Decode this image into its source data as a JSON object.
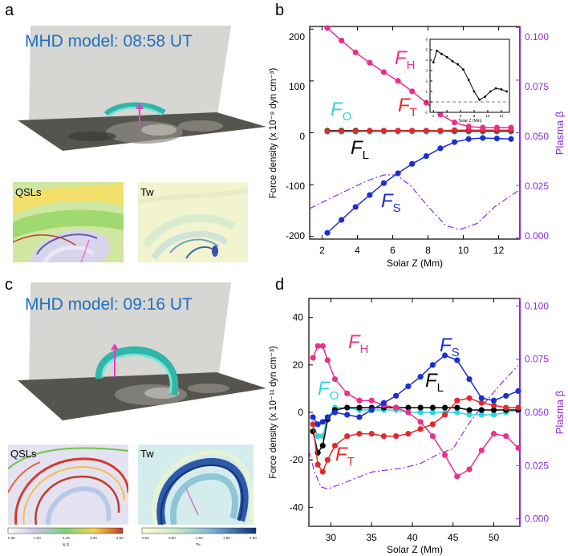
{
  "panels": {
    "a": {
      "letter": "a",
      "title": "MHD model: 08:58 UT",
      "map_left": "QSLs",
      "map_right": "Tw"
    },
    "b": {
      "letter": "b"
    },
    "c": {
      "letter": "c",
      "title": "MHD model: 09:16 UT",
      "map_left": "QSLs",
      "map_right": "Tw",
      "cbar_left": {
        "ticks": [
          "0.30",
          "1.20",
          "2.15",
          "3.00",
          "4.00"
        ],
        "label": "lg Q"
      },
      "cbar_right": {
        "ticks": [
          "0.00",
          "0.50",
          "1.00",
          "1.50",
          "2.00"
        ],
        "label": "Tw"
      }
    },
    "d": {
      "letter": "d"
    }
  },
  "colors": {
    "FH": "#e8308f",
    "FT": "#e02b2b",
    "FO": "#2fd6e0",
    "FL": "#000000",
    "FS": "#1b2fd2",
    "beta": "#8a2be2"
  },
  "chart_data": [
    {
      "type": "line",
      "xlabel": "Solar Z (Mm)",
      "ylabel": "Force density (x 10⁻⁸ dyn cm⁻³)",
      "y2label": "Plasma β",
      "xlim": [
        1.3,
        13.2
      ],
      "ylim": [
        -205,
        205
      ],
      "y2lim": [
        -0.0005,
        0.1005
      ],
      "xticks": [
        "2",
        "4",
        "6",
        "8",
        "10",
        "12"
      ],
      "yticks": [
        "200",
        "100",
        "0",
        "-100",
        "-200"
      ],
      "y2ticks": [
        "0.100",
        "0.075",
        "0.050",
        "0.025",
        "0.000"
      ],
      "series": [
        {
          "name": "FH",
          "x": [
            2.3,
            3.1,
            3.9,
            4.7,
            5.5,
            6.3,
            7.1,
            7.9,
            8.7,
            9.5,
            10.3,
            11.1,
            11.9,
            12.7
          ],
          "values": [
            202,
            178,
            155,
            135,
            117,
            100,
            80,
            58,
            35,
            20,
            12,
            10,
            10,
            10
          ]
        },
        {
          "name": "FT",
          "x": [
            2.3,
            3.1,
            3.9,
            4.7,
            5.5,
            6.3,
            7.1,
            7.9,
            8.7,
            9.5,
            10.3,
            11.1,
            11.9,
            12.7
          ],
          "values": [
            3,
            3,
            3,
            4,
            4,
            4,
            4,
            4,
            4,
            5,
            5,
            5,
            5,
            5
          ]
        },
        {
          "name": "FO",
          "x": [
            2.3,
            3.1,
            3.9,
            4.7,
            5.5,
            6.3,
            7.1,
            7.9,
            8.7,
            9.5,
            10.3,
            11.1,
            11.9,
            12.7
          ],
          "values": [
            2,
            2,
            2,
            2,
            2,
            2,
            2,
            2,
            2,
            2,
            2,
            2,
            2,
            2
          ]
        },
        {
          "name": "FL",
          "x": [
            2.3,
            3.1,
            3.9,
            4.7,
            5.5,
            6.3,
            7.1,
            7.9,
            8.7,
            9.5,
            10.3,
            11.1,
            11.9,
            12.7
          ],
          "values": [
            4,
            4,
            4,
            4,
            4,
            4,
            4,
            4,
            4,
            4,
            4,
            4,
            4,
            4
          ]
        },
        {
          "name": "FS",
          "x": [
            2.3,
            3.1,
            3.9,
            4.7,
            5.5,
            6.3,
            7.1,
            7.9,
            8.7,
            9.5,
            10.3,
            11.1,
            11.9,
            12.7
          ],
          "values": [
            -193,
            -168,
            -143,
            -120,
            -97,
            -78,
            -60,
            -45,
            -30,
            -18,
            -12,
            -10,
            -11,
            -12
          ]
        },
        {
          "name": "Plasma β",
          "axis": "right",
          "style": "dashdot",
          "x": [
            1.3,
            2.5,
            3.5,
            4.5,
            5.5,
            6.2,
            7.0,
            8.0,
            9.0,
            9.8,
            10.8,
            11.8,
            13.2
          ],
          "values": [
            0.014,
            0.019,
            0.023,
            0.027,
            0.03,
            0.03,
            0.025,
            0.015,
            0.006,
            0.004,
            0.007,
            0.015,
            0.023
          ]
        }
      ],
      "inset": {
        "xlabel": "Solar Z (Mm)",
        "xlim": [
          1.5,
          13.2
        ],
        "ylim": [
          -1,
          6
        ],
        "xticks": [
          "2",
          "4",
          "6",
          "8",
          "10",
          "12"
        ],
        "yticks": [
          "6",
          "5",
          "4",
          "3",
          "2",
          "1",
          "0",
          "-1"
        ],
        "x": [
          2,
          2.5,
          3.2,
          4,
          4.8,
          5.6,
          6.4,
          7.2,
          8,
          8.8,
          9.6,
          10.4,
          11.2,
          12,
          12.8
        ],
        "values": [
          3.8,
          4.9,
          4.6,
          4.3,
          3.9,
          3.6,
          3.1,
          2.1,
          1.0,
          0.2,
          0.5,
          1.0,
          1.3,
          1.2,
          1.0
        ]
      }
    },
    {
      "type": "line",
      "xlabel": "Solar Z (Mm)",
      "ylabel": "Force density (x 10⁻¹¹ dyn cm⁻³)",
      "y2label": "Plasma β",
      "xlim": [
        27.3,
        53.2
      ],
      "ylim": [
        -48,
        48
      ],
      "y2lim": [
        -0.0035,
        0.1035
      ],
      "xticks": [
        "30",
        "35",
        "40",
        "45",
        "50"
      ],
      "yticks": [
        "40",
        "20",
        "0",
        "-20",
        "-40"
      ],
      "y2ticks": [
        "0.100",
        "0.075",
        "0.050",
        "0.025",
        "0.000"
      ],
      "series": [
        {
          "name": "FH",
          "x": [
            27.8,
            28.4,
            29.0,
            29.6,
            30.5,
            32,
            33.5,
            35,
            36.5,
            38,
            39.5,
            41,
            42.5,
            44,
            45.5,
            47,
            48.5,
            50,
            51.5,
            53
          ],
          "values": [
            23,
            28,
            28,
            22,
            14,
            8,
            5,
            5,
            3,
            2,
            0,
            -4,
            -10,
            -18,
            -27,
            -24,
            -16,
            -9,
            -10,
            -15
          ]
        },
        {
          "name": "FT",
          "x": [
            27.8,
            28.4,
            29.0,
            29.6,
            30.5,
            32,
            33.5,
            35,
            36.5,
            38,
            39.5,
            41,
            42.5,
            44,
            45.5,
            47,
            48.5,
            50,
            51.5,
            53
          ],
          "values": [
            -5,
            -22,
            -25,
            -20,
            -14,
            -10,
            -9,
            -9,
            -10,
            -10,
            -9,
            -7,
            -5,
            -1,
            5,
            6,
            4,
            3,
            2,
            2
          ]
        },
        {
          "name": "FO",
          "x": [
            27.8,
            28.4,
            29.0,
            29.6,
            30.5,
            32,
            33.5,
            35,
            36.5,
            38,
            39.5,
            41,
            42.5,
            44,
            45.5,
            47,
            48.5,
            50,
            51.5,
            53
          ],
          "values": [
            -5,
            -10,
            -10,
            -2,
            2,
            2,
            1,
            1,
            1,
            1,
            0,
            0,
            0,
            0,
            0,
            -1,
            -1,
            -1,
            0,
            1
          ]
        },
        {
          "name": "FL",
          "x": [
            27.8,
            28.4,
            29.0,
            29.6,
            30.5,
            32,
            33.5,
            35,
            36.5,
            38,
            39.5,
            41,
            42.5,
            44,
            45.5,
            47,
            48.5,
            50,
            51.5,
            53
          ],
          "values": [
            -8,
            -17,
            -14,
            -3,
            1,
            2,
            2,
            2,
            2,
            2,
            2,
            2,
            2,
            2,
            2,
            1,
            1,
            1,
            1,
            1
          ]
        },
        {
          "name": "FS",
          "x": [
            27.8,
            28.4,
            29.0,
            29.6,
            30.5,
            32,
            33.5,
            35,
            36.5,
            38,
            39.5,
            41,
            42.5,
            44,
            45.5,
            47,
            48.5,
            50,
            51.5,
            53
          ],
          "values": [
            -2,
            -5,
            -4,
            -2,
            0,
            -1,
            -2,
            1,
            4,
            7,
            11,
            15,
            20,
            24,
            22,
            14,
            6,
            5,
            7,
            9
          ]
        },
        {
          "name": "Plasma β",
          "axis": "right",
          "style": "dashdot",
          "x": [
            27.3,
            28.0,
            28.8,
            29.6,
            31,
            33,
            35,
            37,
            39,
            41,
            43,
            45,
            47,
            49,
            51,
            53
          ],
          "values": [
            0.032,
            0.022,
            0.015,
            0.014,
            0.016,
            0.019,
            0.022,
            0.023,
            0.024,
            0.026,
            0.03,
            0.033,
            0.045,
            0.055,
            0.064,
            0.072
          ]
        }
      ]
    }
  ],
  "labels": {
    "b": {
      "FH": "F",
      "FH_sub": "H",
      "FO": "F",
      "FO_sub": "O",
      "FT": "F",
      "FT_sub": "T",
      "FL": "F",
      "FL_sub": "L",
      "FS": "F",
      "FS_sub": "S"
    },
    "d": {
      "FH": "F",
      "FH_sub": "H",
      "FO": "F",
      "FO_sub": "O",
      "FT": "F",
      "FT_sub": "T",
      "FL": "F",
      "FL_sub": "L",
      "FS": "F",
      "FS_sub": "S"
    }
  }
}
